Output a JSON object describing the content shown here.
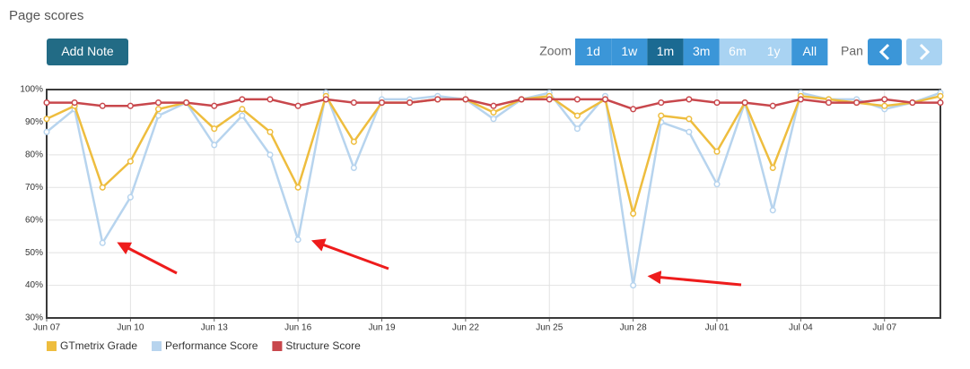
{
  "header": {
    "title": "Page scores"
  },
  "toolbar": {
    "add_note": "Add Note",
    "zoom_label": "Zoom",
    "zoom_options": [
      "1d",
      "1w",
      "1m",
      "3m",
      "6m",
      "1y",
      "All"
    ],
    "zoom_selected": "1m",
    "zoom_disabled": [
      "6m",
      "1y"
    ],
    "pan_label": "Pan"
  },
  "chart_data": {
    "type": "line",
    "categories": [
      "Jun 07",
      null,
      null,
      "Jun 10",
      null,
      null,
      "Jun 13",
      null,
      null,
      "Jun 16",
      null,
      null,
      "Jun 19",
      null,
      null,
      "Jun 22",
      null,
      null,
      "Jun 25",
      null,
      null,
      "Jun 28",
      null,
      null,
      "Jul 01",
      null,
      null,
      "Jul 04",
      null,
      null,
      "Jul 07",
      null,
      null
    ],
    "series": [
      {
        "name": "GTmetrix Grade",
        "color": "#eebd3e",
        "values": [
          91,
          95,
          70,
          78,
          94,
          96,
          88,
          94,
          87,
          70,
          98,
          84,
          96,
          96,
          97,
          97,
          93,
          97,
          98,
          92,
          97,
          62,
          92,
          91,
          81,
          96,
          76,
          98,
          97,
          96,
          95,
          96,
          98
        ]
      },
      {
        "name": "Performance Score",
        "color": "#b7d4ee",
        "values": [
          87,
          94,
          53,
          67,
          92,
          96,
          83,
          92,
          80,
          54,
          99,
          76,
          97,
          97,
          98,
          97,
          91,
          97,
          99,
          88,
          98,
          40,
          90,
          87,
          71,
          96,
          63,
          99,
          97,
          97,
          94,
          96,
          99
        ]
      },
      {
        "name": "Structure Score",
        "color": "#c8474c",
        "values": [
          96,
          96,
          95,
          95,
          96,
          96,
          95,
          97,
          97,
          95,
          97,
          96,
          96,
          96,
          97,
          97,
          95,
          97,
          97,
          97,
          97,
          94,
          96,
          97,
          96,
          96,
          95,
          97,
          96,
          96,
          97,
          96,
          96
        ]
      }
    ],
    "ylim": [
      30,
      100
    ],
    "yticks": [
      {
        "value": 30,
        "label": "30%"
      },
      {
        "value": 40,
        "label": "40%"
      },
      {
        "value": 50,
        "label": "50%"
      },
      {
        "value": 60,
        "label": "60%"
      },
      {
        "value": 70,
        "label": "70%"
      },
      {
        "value": 80,
        "label": "80%"
      },
      {
        "value": 90,
        "label": "90%"
      },
      {
        "value": 100,
        "label": "100%"
      }
    ],
    "grid": true,
    "legend": "bottom-left"
  }
}
